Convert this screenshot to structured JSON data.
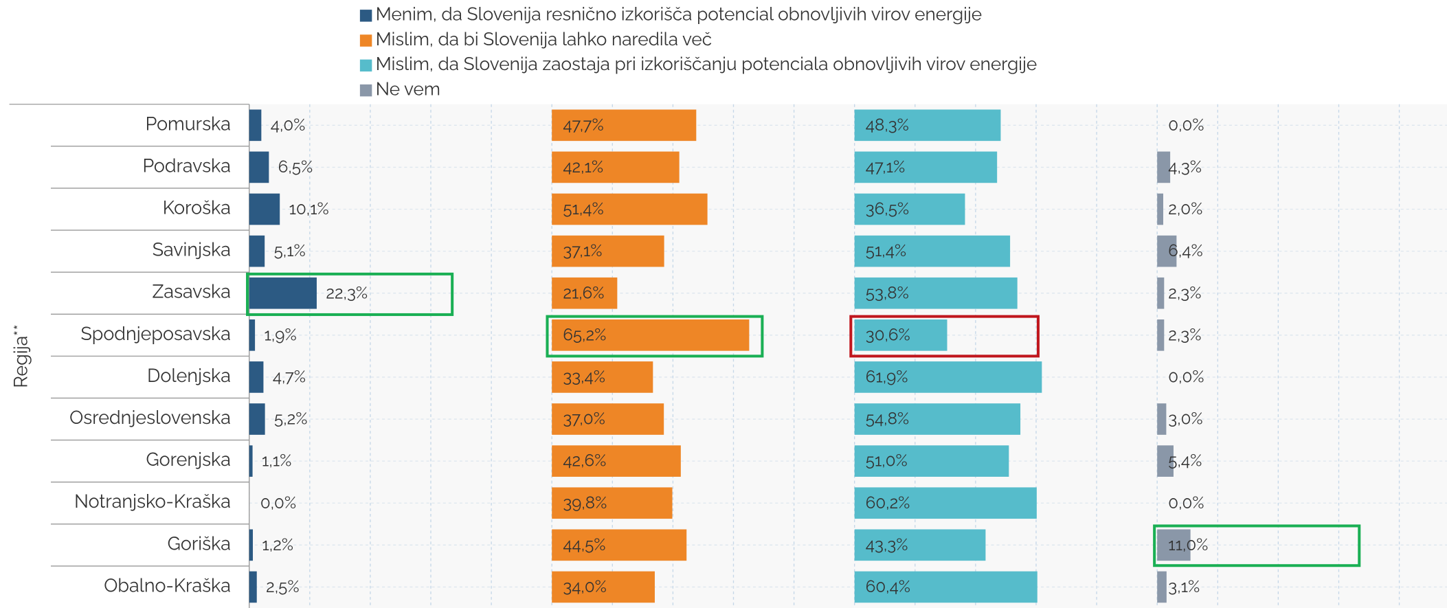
{
  "chart_data": {
    "type": "bar",
    "orientation": "horizontal",
    "layout": "small-multiples",
    "y_label": "Regija**",
    "categories": [
      "Pomurska",
      "Podravska",
      "Koroška",
      "Savinjska",
      "Zasavska",
      "Spodnjeposavska",
      "Dolenjska",
      "Osrednjeslovenska",
      "Gorenjska",
      "Notranjsko-Kraška",
      "Goriška",
      "Obalno-Kraška"
    ],
    "xlim": [
      0,
      100
    ],
    "xticks": [
      0,
      20,
      40,
      60,
      80,
      100
    ],
    "grid": true,
    "legend": "top",
    "series": [
      {
        "name": "Menim, da Slovenija resnično izkorišča potencial obnovljivih virov energije",
        "color": "#2c5a83",
        "values": [
          4.0,
          6.5,
          10.1,
          5.1,
          22.3,
          1.9,
          4.7,
          5.2,
          1.1,
          0.0,
          1.2,
          2.5
        ],
        "value_labels": [
          "4,0%",
          "6,5%",
          "10,1%",
          "5,1%",
          "22,3%",
          "1,9%",
          "4,7%",
          "5,2%",
          "1,1%",
          "0,0%",
          "1,2%",
          "2,5%"
        ]
      },
      {
        "name": "Mislim, da bi Slovenija lahko naredila več",
        "color": "#ee8626",
        "values": [
          47.7,
          42.1,
          51.4,
          37.1,
          21.6,
          65.2,
          33.4,
          37.0,
          42.6,
          39.8,
          44.5,
          34.0
        ],
        "value_labels": [
          "47,7%",
          "42,1%",
          "51,4%",
          "37,1%",
          "21,6%",
          "65,2%",
          "33,4%",
          "37,0%",
          "42,6%",
          "39,8%",
          "44,5%",
          "34,0%"
        ]
      },
      {
        "name": "Mislim, da Slovenija zaostaja pri izkoriščanju potenciala obnovljivih virov energije",
        "color": "#56bccb",
        "values": [
          48.3,
          47.1,
          36.5,
          51.4,
          53.8,
          30.6,
          61.9,
          54.8,
          51.0,
          60.2,
          43.3,
          60.4
        ],
        "value_labels": [
          "48,3%",
          "47,1%",
          "36,5%",
          "51,4%",
          "53,8%",
          "30,6%",
          "61,9%",
          "54,8%",
          "51,0%",
          "60,2%",
          "43,3%",
          "60,4%"
        ]
      },
      {
        "name": "Ne vem",
        "color": "#8a97a8",
        "values": [
          0.0,
          4.3,
          2.0,
          6.4,
          2.3,
          2.3,
          0.0,
          3.0,
          5.4,
          0.0,
          11.0,
          3.1
        ],
        "value_labels": [
          "0,0%",
          "4,3%",
          "2,0%",
          "6,4%",
          "2,3%",
          "2,3%",
          "0,0%",
          "3,0%",
          "5,4%",
          "0,0%",
          "11,0%",
          "3,1%"
        ]
      }
    ]
  }
}
